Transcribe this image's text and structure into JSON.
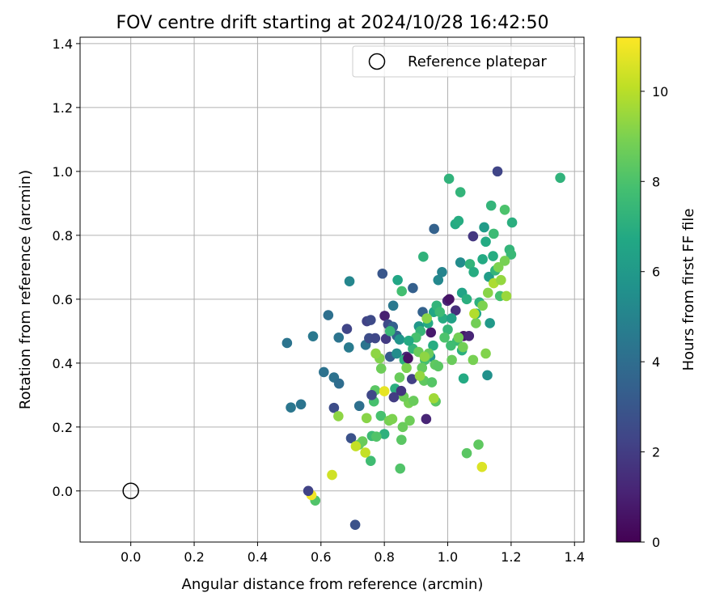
{
  "chart_data": {
    "type": "scatter",
    "title": "FOV centre drift starting at 2024/10/28 16:42:50",
    "xlabel": "Angular distance from reference (arcmin)",
    "ylabel": "Rotation from reference (arcmin)",
    "xlim": [
      -0.16,
      1.43
    ],
    "ylim": [
      -0.16,
      1.42
    ],
    "xticks": [
      0.0,
      0.2,
      0.4,
      0.6,
      0.8,
      1.0,
      1.2,
      1.4
    ],
    "xtick_labels": [
      "0.0",
      "0.2",
      "0.4",
      "0.6",
      "0.8",
      "1.0",
      "1.2",
      "1.4"
    ],
    "yticks": [
      0.0,
      0.2,
      0.4,
      0.6,
      0.8,
      1.0,
      1.2,
      1.4
    ],
    "ytick_labels": [
      "0.0",
      "0.2",
      "0.4",
      "0.6",
      "0.8",
      "1.0",
      "1.2",
      "1.4"
    ],
    "grid": true,
    "legend": {
      "placement": "top-right",
      "entries": [
        "Reference platepar"
      ]
    },
    "reference_point": {
      "x": 0.0,
      "y": 0.0,
      "marker": "open-circle"
    },
    "colorbar": {
      "label": "Hours from first FF file",
      "range": [
        0,
        11.2
      ],
      "ticks": [
        0,
        2,
        4,
        6,
        8,
        10
      ],
      "tick_labels": [
        "0",
        "2",
        "4",
        "6",
        "8",
        "10"
      ],
      "colormap": "viridis"
    },
    "series": [
      {
        "points": [
          [
            0.493,
            0.463,
            4.3
          ],
          [
            0.505,
            0.261,
            4.4
          ],
          [
            0.537,
            0.271,
            4.3
          ],
          [
            0.575,
            0.484,
            4.5
          ],
          [
            0.609,
            0.372,
            4.2
          ],
          [
            0.623,
            0.55,
            4.1
          ],
          [
            0.641,
            0.355,
            4.2
          ],
          [
            0.641,
            0.26,
            2.6
          ],
          [
            0.656,
            0.48,
            4.3
          ],
          [
            0.657,
            0.336,
            4.0
          ],
          [
            0.682,
            0.507,
            2.3
          ],
          [
            0.688,
            0.449,
            4.6
          ],
          [
            0.69,
            0.656,
            5.1
          ],
          [
            0.695,
            0.165,
            2.8
          ],
          [
            0.721,
            0.266,
            4.1
          ],
          [
            0.741,
            0.457,
            4.3
          ],
          [
            0.745,
            0.531,
            2.2
          ],
          [
            0.757,
            0.535,
            2.5
          ],
          [
            0.752,
            0.478,
            2.6
          ],
          [
            0.771,
            0.478,
            2.4
          ],
          [
            0.794,
            0.68,
            3.0
          ],
          [
            0.801,
            0.548,
            1.0
          ],
          [
            0.812,
            0.521,
            2.5
          ],
          [
            0.827,
            0.514,
            3.4
          ],
          [
            0.828,
            0.58,
            4.5
          ],
          [
            0.839,
            0.486,
            3.6
          ],
          [
            0.848,
            0.474,
            5.8
          ],
          [
            0.805,
            0.476,
            1.9
          ],
          [
            0.818,
            0.42,
            3.2
          ],
          [
            0.839,
            0.43,
            5.4
          ],
          [
            0.87,
            0.42,
            1.2
          ],
          [
            0.887,
            0.35,
            2.1
          ],
          [
            0.89,
            0.635,
            3.4
          ],
          [
            0.909,
            0.515,
            5.9
          ],
          [
            0.921,
            0.56,
            3.5
          ],
          [
            0.932,
            0.225,
            1.2
          ],
          [
            0.947,
            0.496,
            0.8
          ],
          [
            0.957,
            0.82,
            3.5
          ],
          [
            0.97,
            0.66,
            5.2
          ],
          [
            0.982,
            0.685,
            5.0
          ],
          [
            0.999,
            0.595,
            1.2
          ],
          [
            1.005,
            0.6,
            0.6
          ],
          [
            1.025,
            0.565,
            1.5
          ],
          [
            1.04,
            0.715,
            5.4
          ],
          [
            1.05,
            0.485,
            0.7
          ],
          [
            1.067,
            0.485,
            1.2
          ],
          [
            1.08,
            0.797,
            1.8
          ],
          [
            1.115,
            0.825,
            6.1
          ],
          [
            1.13,
            0.67,
            6.2
          ],
          [
            1.133,
            0.525,
            6.0
          ],
          [
            1.157,
            1.0,
            2.3
          ],
          [
            1.125,
            0.362,
            5.6
          ],
          [
            0.945,
            0.42,
            5.8
          ],
          [
            0.956,
            0.56,
            6.6
          ],
          [
            0.965,
            0.58,
            7.3
          ],
          [
            0.985,
            0.54,
            6.9
          ],
          [
            1.0,
            0.505,
            7.4
          ],
          [
            1.012,
            0.54,
            6.4
          ],
          [
            1.024,
            0.835,
            6.8
          ],
          [
            1.034,
            0.845,
            6.9
          ],
          [
            1.04,
            0.935,
            7.3
          ],
          [
            1.004,
            0.977,
            7.2
          ],
          [
            0.923,
            0.733,
            7.2
          ],
          [
            1.045,
            0.62,
            6.5
          ],
          [
            1.06,
            0.6,
            7.0
          ],
          [
            1.07,
            0.71,
            7.3
          ],
          [
            1.082,
            0.685,
            6.9
          ],
          [
            1.09,
            0.555,
            6.6
          ],
          [
            1.1,
            0.59,
            7.1
          ],
          [
            1.11,
            0.725,
            6.8
          ],
          [
            1.12,
            0.78,
            6.8
          ],
          [
            1.137,
            0.893,
            7.3
          ],
          [
            1.145,
            0.805,
            7.6
          ],
          [
            1.143,
            0.735,
            6.9
          ],
          [
            1.15,
            0.69,
            7.3
          ],
          [
            1.165,
            0.61,
            7.9
          ],
          [
            1.18,
            0.88,
            8.0
          ],
          [
            1.195,
            0.755,
            7.3
          ],
          [
            1.2,
            0.74,
            7.5
          ],
          [
            1.203,
            0.84,
            7.0
          ],
          [
            1.355,
            0.98,
            7.2
          ],
          [
            1.05,
            0.352,
            6.8
          ],
          [
            1.045,
            0.44,
            7.0
          ],
          [
            1.03,
            0.47,
            7.5
          ],
          [
            1.01,
            0.455,
            7.7
          ],
          [
            0.99,
            0.48,
            8.0
          ],
          [
            0.975,
            0.56,
            7.6
          ],
          [
            0.954,
            0.455,
            6.9
          ],
          [
            0.938,
            0.525,
            6.8
          ],
          [
            0.928,
            0.41,
            7.8
          ],
          [
            0.914,
            0.5,
            7.4
          ],
          [
            0.9,
            0.48,
            7.9
          ],
          [
            0.89,
            0.445,
            7.3
          ],
          [
            0.877,
            0.47,
            6.8
          ],
          [
            0.863,
            0.41,
            7.1
          ],
          [
            0.855,
            0.625,
            7.8
          ],
          [
            0.842,
            0.66,
            6.6
          ],
          [
            0.834,
            0.32,
            7.0
          ],
          [
            0.818,
            0.5,
            7.5
          ],
          [
            0.8,
            0.178,
            7.1
          ],
          [
            0.789,
            0.235,
            7.9
          ],
          [
            0.771,
            0.315,
            8.3
          ],
          [
            0.767,
            0.28,
            7.9
          ],
          [
            0.761,
            0.172,
            7.6
          ],
          [
            0.775,
            0.17,
            8.1
          ],
          [
            0.757,
            0.094,
            7.7
          ],
          [
            0.731,
            0.155,
            8.6
          ],
          [
            0.72,
            0.145,
            8.6
          ],
          [
            0.85,
            0.07,
            8.1
          ],
          [
            0.582,
            -0.03,
            8.1
          ],
          [
            1.06,
            0.118,
            8.3
          ],
          [
            1.097,
            0.145,
            8.4
          ],
          [
            0.877,
            0.275,
            8.9
          ],
          [
            0.892,
            0.282,
            8.6
          ],
          [
            0.815,
            0.22,
            8.9
          ],
          [
            0.825,
            0.225,
            9.0
          ],
          [
            0.785,
            0.415,
            9.1
          ],
          [
            0.79,
            0.383,
            8.7
          ],
          [
            0.848,
            0.355,
            8.6
          ],
          [
            0.861,
            0.295,
            8.7
          ],
          [
            0.854,
            0.16,
            8.3
          ],
          [
            0.858,
            0.2,
            8.6
          ],
          [
            0.87,
            0.385,
            9.0
          ],
          [
            0.88,
            0.22,
            8.7
          ],
          [
            0.908,
            0.435,
            8.6
          ],
          [
            0.919,
            0.385,
            8.5
          ],
          [
            0.925,
            0.345,
            8.4
          ],
          [
            0.94,
            0.43,
            8.6
          ],
          [
            0.96,
            0.395,
            8.4
          ],
          [
            0.97,
            0.39,
            8.3
          ],
          [
            0.95,
            0.34,
            8.2
          ],
          [
            0.962,
            0.28,
            8.3
          ],
          [
            0.912,
            0.36,
            9.4
          ],
          [
            0.927,
            0.42,
            9.3
          ],
          [
            0.934,
            0.54,
            9.2
          ],
          [
            0.956,
            0.29,
            9.6
          ],
          [
            0.773,
            0.43,
            9.3
          ],
          [
            0.744,
            0.228,
            9.2
          ],
          [
            0.655,
            0.234,
            9.3
          ],
          [
            1.013,
            0.41,
            8.6
          ],
          [
            1.034,
            0.48,
            8.8
          ],
          [
            1.048,
            0.45,
            8.8
          ],
          [
            1.08,
            0.41,
            8.9
          ],
          [
            1.089,
            0.525,
            8.8
          ],
          [
            1.12,
            0.43,
            9.1
          ],
          [
            1.084,
            0.555,
            9.9
          ],
          [
            1.127,
            0.62,
            9.2
          ],
          [
            1.145,
            0.65,
            9.8
          ],
          [
            1.168,
            0.66,
            9.4
          ],
          [
            1.16,
            0.7,
            9.0
          ],
          [
            1.18,
            0.72,
            8.9
          ],
          [
            1.185,
            0.61,
            9.5
          ],
          [
            1.11,
            0.58,
            9.0
          ],
          [
            0.71,
            0.14,
            10.2
          ],
          [
            0.74,
            0.12,
            10.2
          ],
          [
            0.635,
            0.05,
            10.4
          ],
          [
            0.8,
            0.312,
            10.8
          ],
          [
            0.57,
            -0.013,
            11.0
          ],
          [
            1.108,
            0.075,
            10.6
          ],
          [
            0.56,
            0.0,
            2.2
          ],
          [
            0.708,
            -0.106,
            2.8
          ],
          [
            0.83,
            0.293,
            2.0
          ],
          [
            0.853,
            0.313,
            1.7
          ],
          [
            0.76,
            0.3,
            2.4
          ],
          [
            0.875,
            0.415,
            0.5
          ]
        ]
      }
    ]
  }
}
